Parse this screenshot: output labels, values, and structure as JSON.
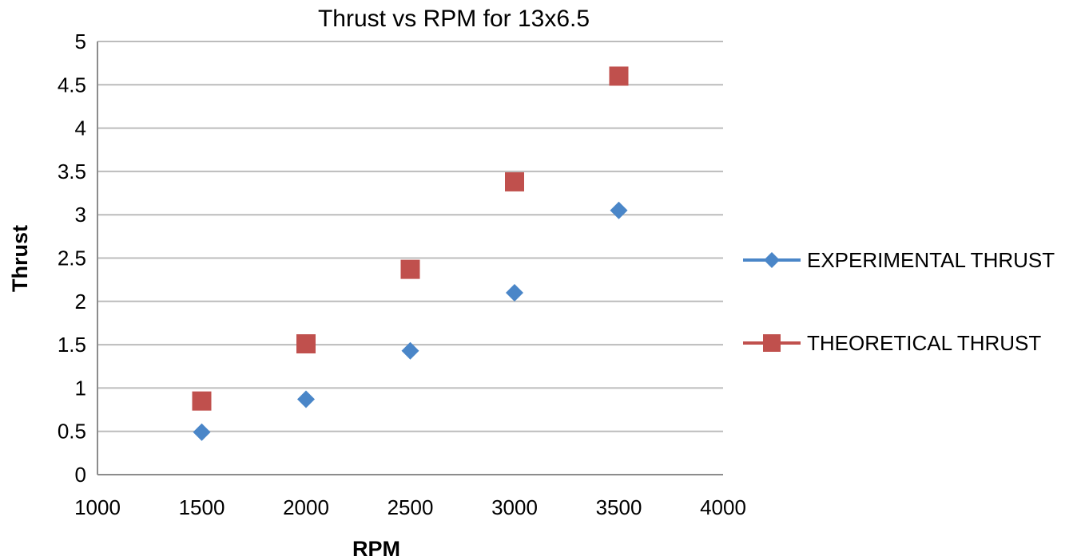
{
  "chart_data": {
    "type": "scatter",
    "title": "Thrust vs RPM for 13x6.5",
    "xlabel": "RPM",
    "ylabel": "Thrust",
    "xlim": [
      1000,
      4000
    ],
    "ylim": [
      0,
      5
    ],
    "xticks": [
      "1000",
      "1500",
      "2000",
      "2500",
      "3000",
      "3500",
      "4000"
    ],
    "yticks": [
      "0",
      "0.5",
      "1",
      "1.5",
      "2",
      "2.5",
      "3",
      "3.5",
      "4",
      "4.5",
      "5"
    ],
    "grid": "horizontal",
    "legend_position": "right",
    "series": [
      {
        "name": "EXPERIMENTAL THRUST",
        "marker": "diamond",
        "color": "#4a86c8",
        "x": [
          1500,
          2000,
          2500,
          3000,
          3500
        ],
        "y": [
          0.49,
          0.87,
          1.43,
          2.1,
          3.05
        ]
      },
      {
        "name": "THEORETICAL THRUST",
        "marker": "square",
        "color": "#c0504d",
        "x": [
          1500,
          2000,
          2500,
          3000,
          3500
        ],
        "y": [
          0.85,
          1.51,
          2.37,
          3.38,
          4.6
        ]
      }
    ]
  }
}
